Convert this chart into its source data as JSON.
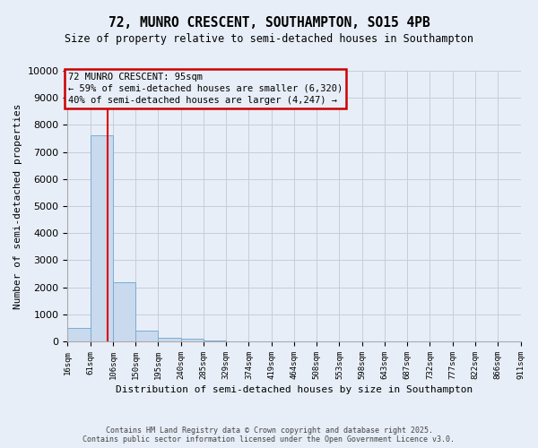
{
  "title": "72, MUNRO CRESCENT, SOUTHAMPTON, SO15 4PB",
  "subtitle": "Size of property relative to semi-detached houses in Southampton",
  "xlabel": "Distribution of semi-detached houses by size in Southampton",
  "ylabel": "Number of semi-detached properties",
  "bin_edges": [
    16,
    61,
    106,
    150,
    195,
    240,
    285,
    329,
    374,
    419,
    464,
    508,
    553,
    598,
    643,
    687,
    732,
    777,
    822,
    866,
    911
  ],
  "bar_heights": [
    500,
    7600,
    2200,
    400,
    150,
    100,
    50,
    0,
    0,
    0,
    0,
    0,
    0,
    0,
    0,
    0,
    0,
    0,
    0,
    0
  ],
  "bar_color": "#c9d9ee",
  "bar_edge_color": "#7aadd4",
  "property_size": 95,
  "red_line_color": "#dd0000",
  "annotation_title": "72 MUNRO CRESCENT: 95sqm",
  "annotation_line1": "← 59% of semi-detached houses are smaller (6,320)",
  "annotation_line2": "40% of semi-detached houses are larger (4,247) →",
  "annotation_box_color": "#cc0000",
  "ylim": [
    0,
    10000
  ],
  "yticks": [
    0,
    1000,
    2000,
    3000,
    4000,
    5000,
    6000,
    7000,
    8000,
    9000,
    10000
  ],
  "footer_line1": "Contains HM Land Registry data © Crown copyright and database right 2025.",
  "footer_line2": "Contains public sector information licensed under the Open Government Licence v3.0.",
  "bg_color": "#e8eef7",
  "grid_color": "#c5cdd8"
}
